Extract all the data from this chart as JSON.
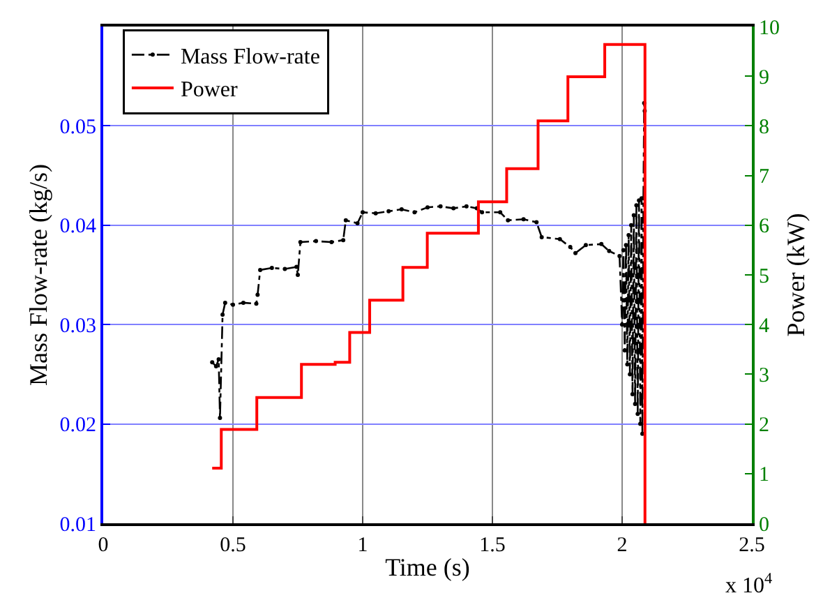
{
  "chart_data": {
    "type": "line",
    "xlabel": "Time (s)",
    "ylabel": "Mass Flow-rate (kg/s)",
    "y2label": "Power (kW)",
    "xlim": [
      0,
      2.5
    ],
    "xticks": [
      0,
      0.5,
      1,
      1.5,
      2,
      2.5
    ],
    "ylim": [
      0.01,
      0.06
    ],
    "yticks": [
      0.01,
      0.02,
      0.03,
      0.04,
      0.05
    ],
    "y2lim": [
      0,
      10
    ],
    "y2ticks": [
      0,
      1,
      2,
      3,
      4,
      5,
      6,
      7,
      8,
      9,
      10
    ],
    "grid": true,
    "legend": "top left",
    "annotations": [
      "x 10$^{4}$"
    ],
    "series": [
      {
        "name": "Mass Flow-rate",
        "color": "#000000",
        "marker": "circle",
        "line_style": "dashed",
        "x": [
          0.42,
          0.435,
          0.445,
          0.45,
          0.46,
          0.47,
          0.5,
          0.54,
          0.59,
          0.595,
          0.605,
          0.65,
          0.7,
          0.745,
          0.75,
          0.76,
          0.82,
          0.88,
          0.925,
          0.935,
          0.98,
          1.0,
          1.05,
          1.1,
          1.15,
          1.2,
          1.25,
          1.3,
          1.35,
          1.4,
          1.44,
          1.46,
          1.53,
          1.56,
          1.62,
          1.67,
          1.69,
          1.76,
          1.8,
          1.82,
          1.86,
          1.92,
          1.95,
          1.99,
          2.0,
          2.005,
          2.01,
          2.015,
          2.02,
          2.025,
          2.03,
          2.035,
          2.04,
          2.045,
          2.05,
          2.055,
          2.06,
          2.065,
          2.07,
          2.075,
          2.078,
          2.082,
          2.085,
          2.087
        ],
        "values": [
          0.0262,
          0.0258,
          0.0265,
          0.0206,
          0.031,
          0.0322,
          0.032,
          0.0322,
          0.0321,
          0.033,
          0.0355,
          0.0357,
          0.0356,
          0.0358,
          0.035,
          0.0383,
          0.0384,
          0.0383,
          0.0385,
          0.0405,
          0.0402,
          0.0413,
          0.0412,
          0.0414,
          0.0416,
          0.0413,
          0.0418,
          0.0419,
          0.0417,
          0.0419,
          0.0417,
          0.0413,
          0.0413,
          0.0405,
          0.0406,
          0.0403,
          0.0388,
          0.0386,
          0.0378,
          0.0372,
          0.038,
          0.0381,
          0.0374,
          0.0369,
          0.03,
          0.0375,
          0.0274,
          0.038,
          0.026,
          0.039,
          0.025,
          0.04,
          0.023,
          0.041,
          0.022,
          0.042,
          0.021,
          0.0425,
          0.02,
          0.0427,
          0.019,
          0.0427,
          0.0523,
          0.0515
        ]
      },
      {
        "name": "Power",
        "color": "#ff0000",
        "type": "step",
        "axis": "y2",
        "line_style": "solid",
        "x": [
          0.42,
          0.455,
          0.592,
          0.764,
          0.894,
          0.95,
          1.027,
          1.155,
          1.249,
          1.446,
          1.555,
          1.676,
          1.791,
          1.933,
          2.088
        ],
        "values": [
          1.11,
          1.89,
          2.53,
          3.2,
          3.24,
          3.84,
          4.49,
          5.15,
          5.84,
          6.47,
          7.14,
          8.1,
          8.99,
          9.64,
          0
        ]
      }
    ]
  }
}
